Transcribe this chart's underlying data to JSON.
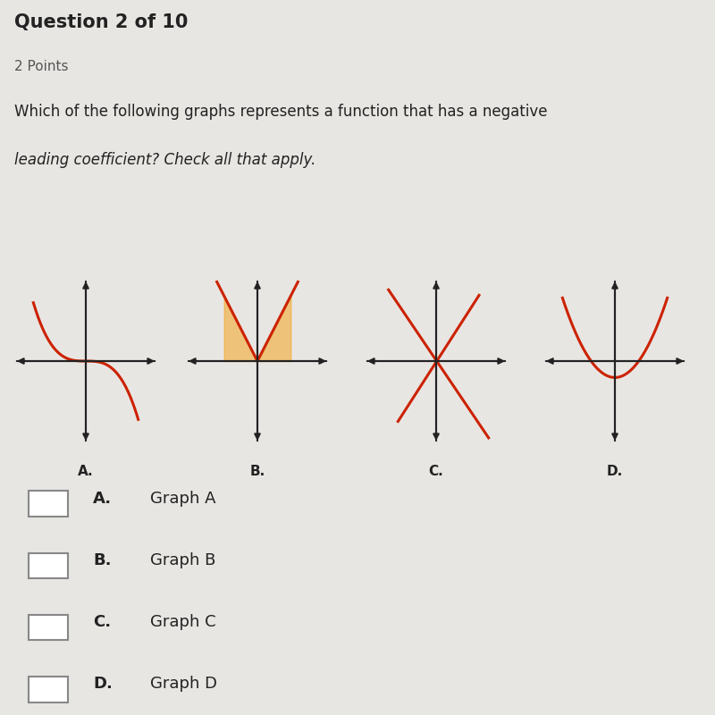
{
  "bg_color": "#e8e6e3",
  "bottom_bg": "#f0efed",
  "title_text": "Question 2 of 10",
  "points_text": "2 Points",
  "question_line1": "Which of the following graphs represents a function that has a negative",
  "question_line2": "leading coefficient? Check all that apply.",
  "graph_labels": [
    "A.",
    "B.",
    "C.",
    "D."
  ],
  "graph_names": [
    "Graph A",
    "Graph B",
    "Graph C",
    "Graph D"
  ],
  "bold_letters": [
    "A.",
    "B.",
    "C.",
    "D."
  ],
  "red_color": "#cc2200",
  "orange_glow": "#f5a623",
  "axis_color": "#222222",
  "text_color": "#222222",
  "checkbox_color": "#888888",
  "separator_color": "#cccccc"
}
